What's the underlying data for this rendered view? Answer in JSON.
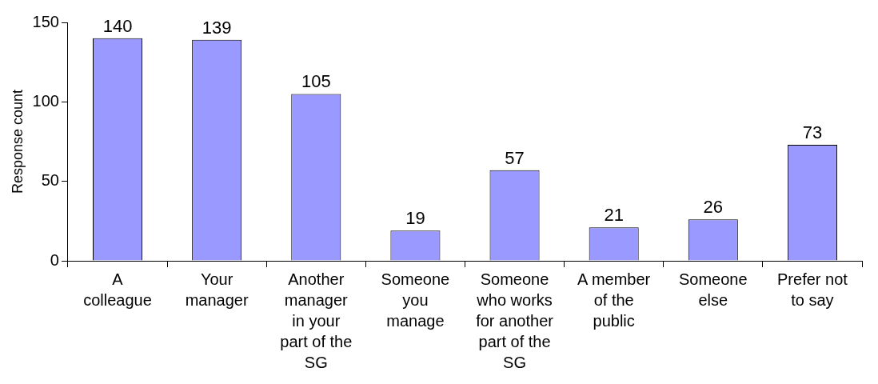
{
  "chart_data": {
    "type": "bar",
    "ylabel": "Response count",
    "categories": [
      "A colleague",
      "Your manager",
      "Another manager in your part of the SG",
      "Someone you manage",
      "Someone who works for another part of the SG",
      "A member of the public",
      "Someone else",
      "Prefer not to say"
    ],
    "values": [
      140,
      139,
      105,
      19,
      57,
      21,
      26,
      73
    ],
    "color": "#9999ff",
    "ylim": [
      0,
      150
    ],
    "yticks": [
      0,
      50,
      100,
      150
    ],
    "grid": false,
    "legend": false,
    "data_labels": true
  }
}
